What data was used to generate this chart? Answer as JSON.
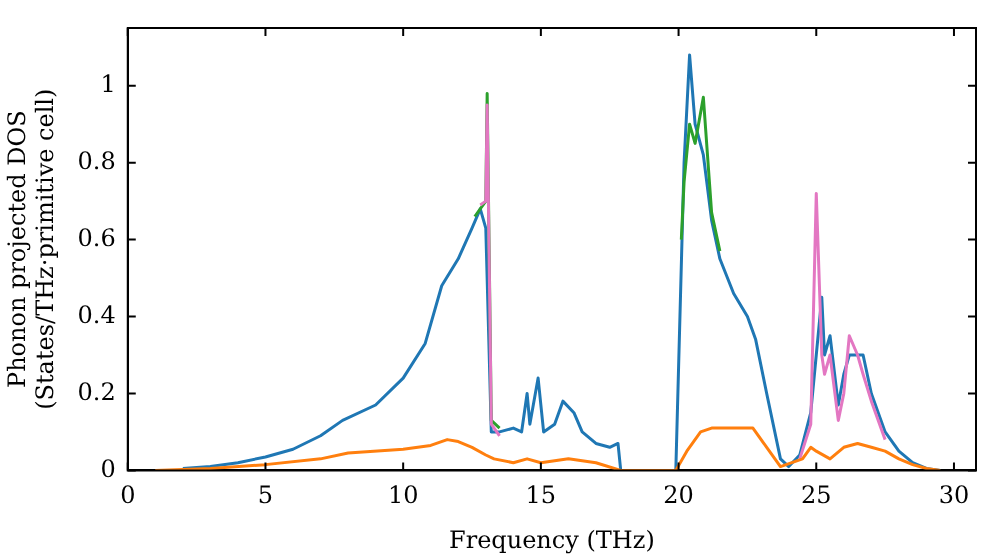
{
  "chart_data": {
    "type": "line",
    "xlabel": "Frequency (THz)",
    "ylabel": "Phonon projected DOS\n(States/THz·primitive cell)",
    "xlim": [
      0,
      30.8
    ],
    "ylim": [
      0,
      1.15
    ],
    "xticks": [
      0,
      5,
      10,
      15,
      20,
      25,
      30
    ],
    "yticks": [
      0,
      0.2,
      0.4,
      0.6,
      0.8,
      1.0
    ],
    "grid": false,
    "legend": false,
    "marker": "none",
    "line_style": "solid",
    "series": [
      {
        "color": "#ff7f0e",
        "x": [
          1,
          3,
          5,
          7,
          8,
          10,
          11,
          11.6,
          12,
          12.5,
          13,
          13.3,
          14,
          14.5,
          15,
          16,
          17,
          17.9,
          19.9,
          20.3,
          20.8,
          21.2,
          22,
          22.7,
          23.2,
          23.7,
          24.5,
          24.8,
          25,
          25.5,
          26,
          26.5,
          27,
          27.5,
          28,
          28.5,
          29,
          29.5
        ],
        "values": [
          0,
          0.005,
          0.015,
          0.03,
          0.045,
          0.055,
          0.065,
          0.08,
          0.075,
          0.06,
          0.04,
          0.03,
          0.02,
          0.03,
          0.02,
          0.03,
          0.02,
          0,
          0,
          0.05,
          0.1,
          0.11,
          0.11,
          0.11,
          0.06,
          0.01,
          0.03,
          0.06,
          0.05,
          0.03,
          0.06,
          0.07,
          0.06,
          0.05,
          0.03,
          0.015,
          0.005,
          0
        ]
      },
      {
        "color": "#e377c2",
        "x": [
          12.8,
          13,
          13.05,
          13.2,
          13.5,
          20,
          24.4,
          24.8,
          25,
          25.2,
          25.3,
          25.5,
          25.8,
          26,
          26.2,
          26.5,
          26.7,
          27,
          27.5
        ],
        "values": [
          0.69,
          0.7,
          0.95,
          0.12,
          0.09,
          null,
          0.03,
          0.12,
          0.72,
          0.3,
          0.25,
          0.3,
          0.13,
          0.2,
          0.35,
          0.3,
          0.25,
          0.18,
          0.08
        ]
      },
      {
        "color": "#2ca02c",
        "x": [
          12.6,
          13,
          13.05,
          13.2,
          13.5,
          16,
          20.1,
          20.2,
          20.4,
          20.6,
          20.9,
          21.2,
          21.5
        ],
        "values": [
          0.66,
          0.7,
          0.98,
          0.13,
          0.11,
          null,
          0.6,
          0.75,
          0.9,
          0.85,
          0.97,
          0.67,
          0.57
        ]
      },
      {
        "color": "#1f77b4",
        "x": [
          2,
          3,
          4,
          5,
          6,
          7,
          7.8,
          9,
          10,
          10.8,
          11.4,
          12,
          12.5,
          12.8,
          13,
          13.2,
          13.5,
          14,
          14.3,
          14.5,
          14.6,
          14.9,
          15.1,
          15.5,
          15.8,
          16.2,
          16.5,
          17,
          17.5,
          17.8,
          17.9,
          19.9,
          20.2,
          20.4,
          20.6,
          20.9,
          21.2,
          21.5,
          22,
          22.5,
          22.8,
          23.2,
          23.7,
          24,
          24.4,
          24.8,
          25,
          25.2,
          25.3,
          25.5,
          25.8,
          26,
          26.2,
          26.5,
          26.7,
          27,
          27.5,
          28,
          28.5,
          29,
          29.5
        ],
        "values": [
          0.005,
          0.01,
          0.02,
          0.035,
          0.055,
          0.09,
          0.13,
          0.17,
          0.24,
          0.33,
          0.48,
          0.55,
          0.63,
          0.68,
          0.63,
          0.1,
          0.1,
          0.11,
          0.1,
          0.2,
          0.12,
          0.24,
          0.1,
          0.12,
          0.18,
          0.15,
          0.1,
          0.07,
          0.06,
          0.07,
          0,
          0,
          0.8,
          1.08,
          0.9,
          0.82,
          0.65,
          0.55,
          0.46,
          0.4,
          0.34,
          0.2,
          0.03,
          0.01,
          0.04,
          0.15,
          0.3,
          0.45,
          0.3,
          0.35,
          0.17,
          0.25,
          0.3,
          0.3,
          0.3,
          0.2,
          0.1,
          0.05,
          0.02,
          0.005,
          0
        ]
      }
    ]
  }
}
